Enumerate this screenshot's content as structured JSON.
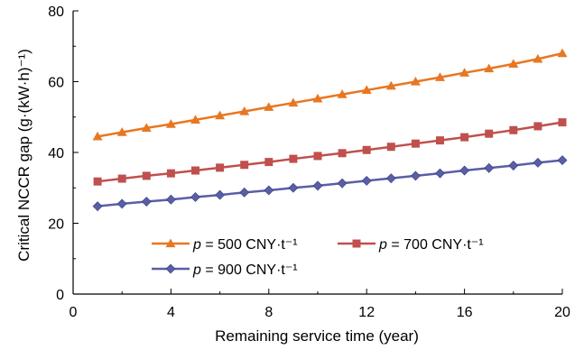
{
  "chart_data": {
    "type": "line",
    "xlabel": "Remaining service time (year)",
    "ylabel": "Critical NCCR gap (g·(kW·h)⁻¹)",
    "xlim": [
      0,
      20
    ],
    "ylim": [
      0,
      80
    ],
    "xticks": [
      "0",
      "4",
      "8",
      "12",
      "16",
      "20"
    ],
    "yticks": [
      "0",
      "20",
      "40",
      "60",
      "80"
    ],
    "grid": false,
    "legend_position": "bottom-right",
    "x": [
      1,
      2,
      3,
      4,
      5,
      6,
      7,
      8,
      9,
      10,
      11,
      12,
      13,
      14,
      15,
      16,
      17,
      18,
      19,
      20
    ],
    "series": [
      {
        "name": "p = 500 CNY·t⁻¹",
        "legend_var": "p",
        "legend_rest": " = 500 CNY·t⁻¹",
        "color": "#E87722",
        "marker": "triangle",
        "values": [
          44.5,
          45.7,
          46.9,
          48.0,
          49.2,
          50.4,
          51.6,
          52.8,
          54.0,
          55.2,
          56.4,
          57.6,
          58.8,
          60.0,
          61.2,
          62.5,
          63.7,
          65.0,
          66.4,
          68.0
        ]
      },
      {
        "name": "p = 700 CNY·t⁻¹",
        "legend_var": "p",
        "legend_rest": " = 700 CNY·t⁻¹",
        "color": "#C0504D",
        "marker": "square",
        "values": [
          31.8,
          32.6,
          33.4,
          34.1,
          34.9,
          35.7,
          36.5,
          37.3,
          38.2,
          39.0,
          39.8,
          40.7,
          41.6,
          42.5,
          43.4,
          44.3,
          45.3,
          46.3,
          47.4,
          48.5
        ]
      },
      {
        "name": "p = 900 CNY·t⁻¹",
        "legend_var": "p",
        "legend_rest": " = 900 CNY·t⁻¹",
        "color": "#5B5EA6",
        "marker": "diamond",
        "values": [
          24.8,
          25.5,
          26.1,
          26.7,
          27.4,
          28.0,
          28.7,
          29.3,
          30.0,
          30.6,
          31.3,
          32.0,
          32.7,
          33.4,
          34.1,
          34.9,
          35.6,
          36.3,
          37.1,
          37.8
        ]
      }
    ]
  }
}
